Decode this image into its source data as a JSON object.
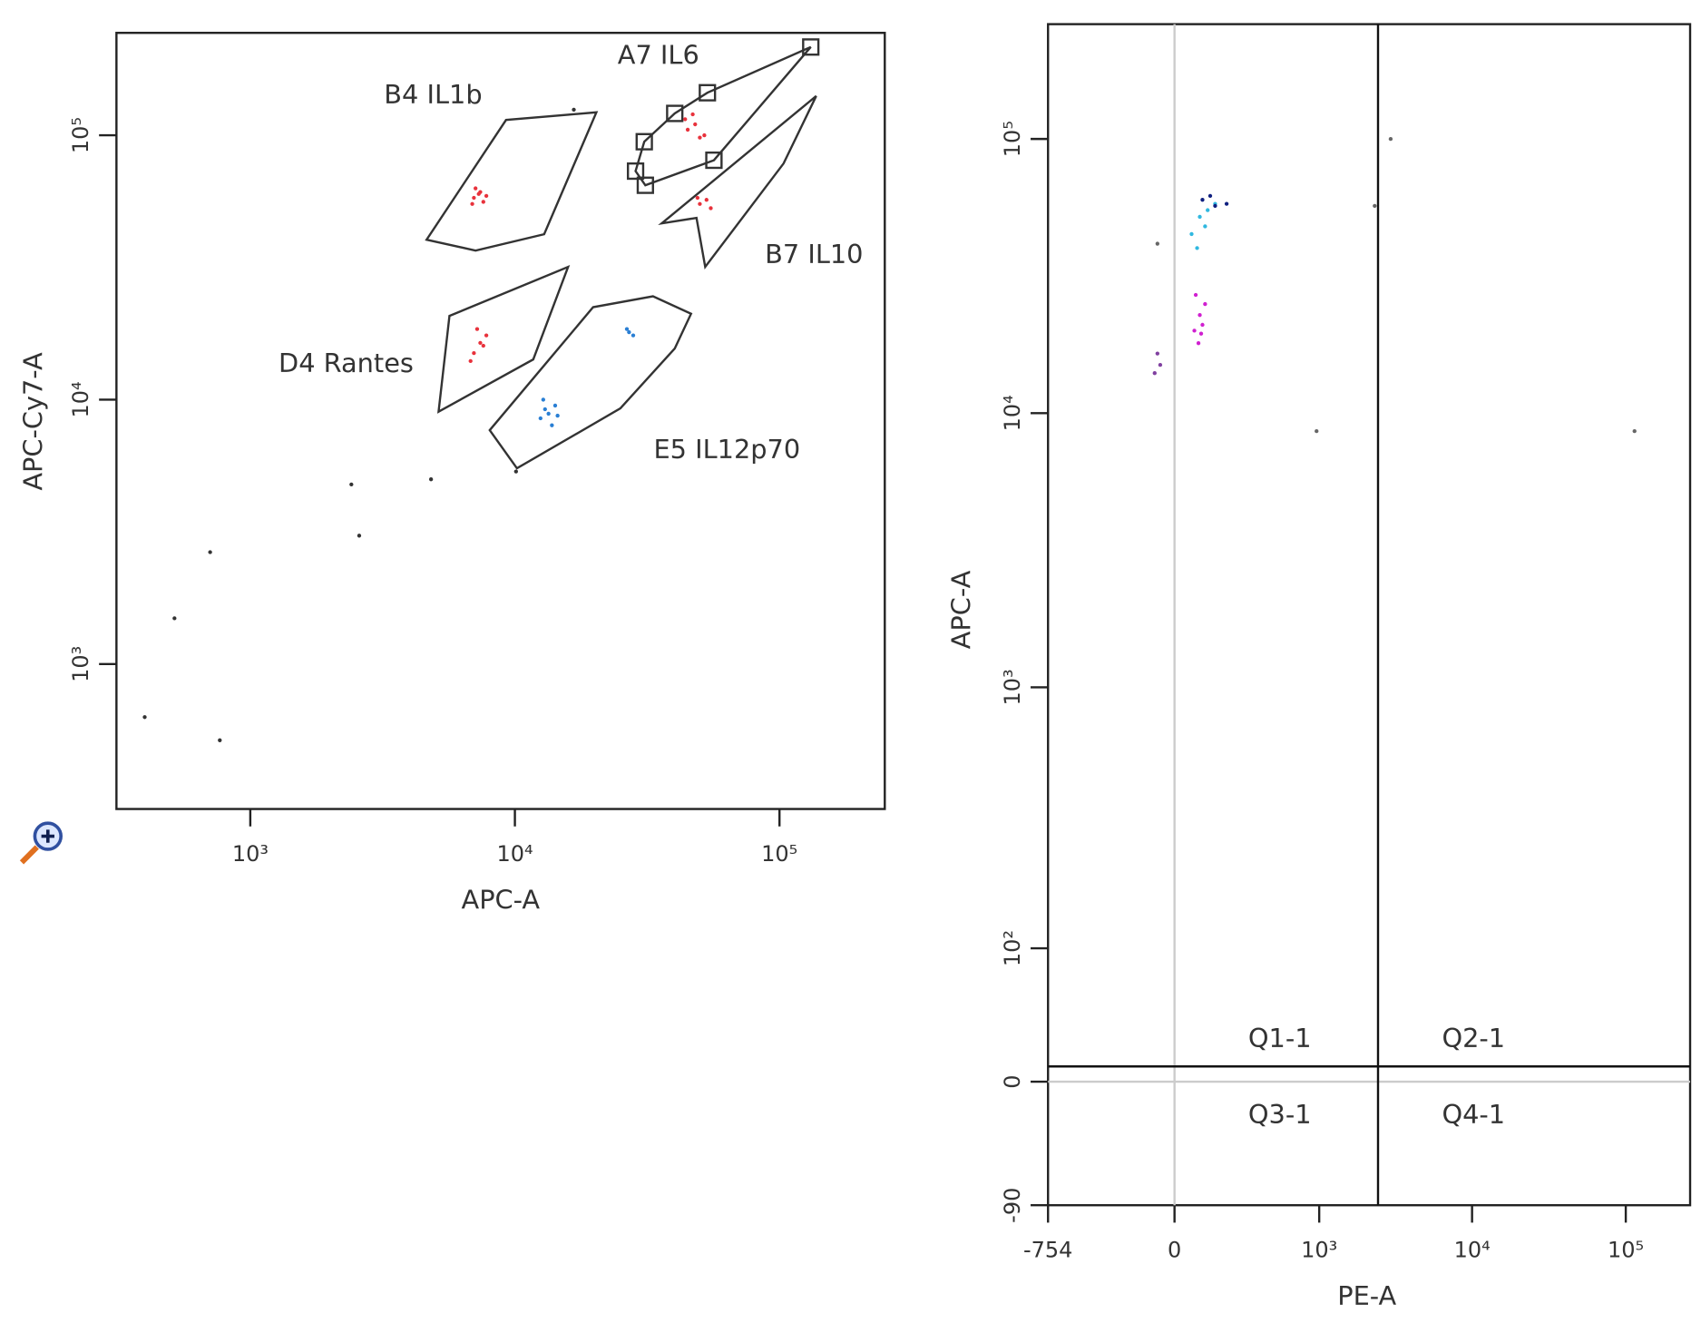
{
  "chart_data": [
    {
      "type": "scatter",
      "xlabel": "APC-A",
      "ylabel": "APC-Cy7-A",
      "xscale": "log",
      "yscale": "log",
      "xlim": [
        312,
        250000
      ],
      "ylim": [
        283,
        244000
      ],
      "xticks": [
        {
          "value": 1000,
          "label": "10³"
        },
        {
          "value": 10000,
          "label": "10⁴"
        },
        {
          "value": 100000,
          "label": "10⁵"
        }
      ],
      "yticks": [
        {
          "value": 1000,
          "label": "10³"
        },
        {
          "value": 10000,
          "label": "10⁴"
        },
        {
          "value": 100000,
          "label": "10⁵"
        }
      ],
      "annotations": [
        "A7 IL6",
        "B4 IL1b",
        "B7 IL10",
        "D4 Rantes",
        "E5 IL12p70"
      ],
      "series": [
        {
          "color": "#e8323c",
          "x": [
            7000,
            7300,
            7600,
            7100,
            7800,
            6900,
            7400,
            45000,
            48000,
            52000,
            44000,
            50000,
            47000,
            50000,
            53000,
            55000,
            49000,
            7000,
            7400,
            7800,
            6800,
            7200,
            7600
          ],
          "values": [
            58000,
            60000,
            56000,
            63000,
            59000,
            55000,
            61000,
            105000,
            110000,
            100000,
            115000,
            98000,
            120000,
            55000,
            57000,
            53000,
            58000,
            15000,
            16400,
            17500,
            14000,
            18500,
            16000
          ]
        },
        {
          "color": "#2a7fd4",
          "x": [
            12500,
            13400,
            14200,
            13000,
            13800,
            12800,
            14500,
            27000,
            28000,
            26500
          ],
          "values": [
            8500,
            8850,
            9500,
            9200,
            8000,
            10000,
            8700,
            18000,
            17500,
            18500
          ]
        },
        {
          "color": "#333333",
          "x": [
            2410,
            705,
            517,
            399,
            767,
            2580,
            4820,
            10100,
            16700
          ],
          "values": [
            4780,
            2650,
            1490,
            630,
            515,
            3060,
            5000,
            5350,
            125000
          ]
        }
      ]
    },
    {
      "type": "scatter",
      "xlabel": "PE-A",
      "ylabel": "APC-A",
      "xscale": "biexponential",
      "yscale": "biexponential",
      "xlim": [
        -754,
        262144
      ],
      "ylim": [
        -90,
        262144
      ],
      "xticks": [
        -754,
        0,
        {
          "value": 1000,
          "label": "10³"
        },
        {
          "value": 10000,
          "label": "10⁴"
        },
        {
          "value": 100000,
          "label": "10⁵"
        }
      ],
      "yticks": [
        -90,
        0,
        {
          "value": 100,
          "label": "10²"
        },
        {
          "value": 1000,
          "label": "10³"
        },
        {
          "value": 10000,
          "label": "10⁴"
        },
        {
          "value": 100000,
          "label": "10⁵"
        }
      ],
      "quadrant": {
        "x": 2440,
        "y": 9.4
      },
      "quadrant_labels": [
        "Q1-1",
        "Q2-1",
        "Q3-1",
        "Q4-1"
      ],
      "series": [
        {
          "color": "#30b8e0",
          "x": [
            60,
            90,
            120,
            150,
            80,
            110
          ],
          "values": [
            45000,
            52000,
            55000,
            58000,
            40000,
            48000
          ]
        },
        {
          "color": "#102080",
          "x": [
            100,
            150,
            200,
            130
          ],
          "values": [
            60000,
            57000,
            58000,
            62000
          ]
        },
        {
          "color": "#d020d0",
          "x": [
            70,
            90,
            110,
            85,
            100,
            75,
            95
          ],
          "values": [
            20000,
            22800,
            25000,
            18000,
            21000,
            27000,
            19500
          ]
        },
        {
          "color": "#8040a0",
          "x": [
            -60,
            -50,
            -70
          ],
          "values": [
            16500,
            15000,
            14000
          ]
        },
        {
          "color": "#666666",
          "x": [
            2320,
            2950,
            960,
            114000,
            -60
          ],
          "values": [
            57000,
            100000,
            8600,
            8600,
            41500
          ]
        }
      ]
    }
  ]
}
